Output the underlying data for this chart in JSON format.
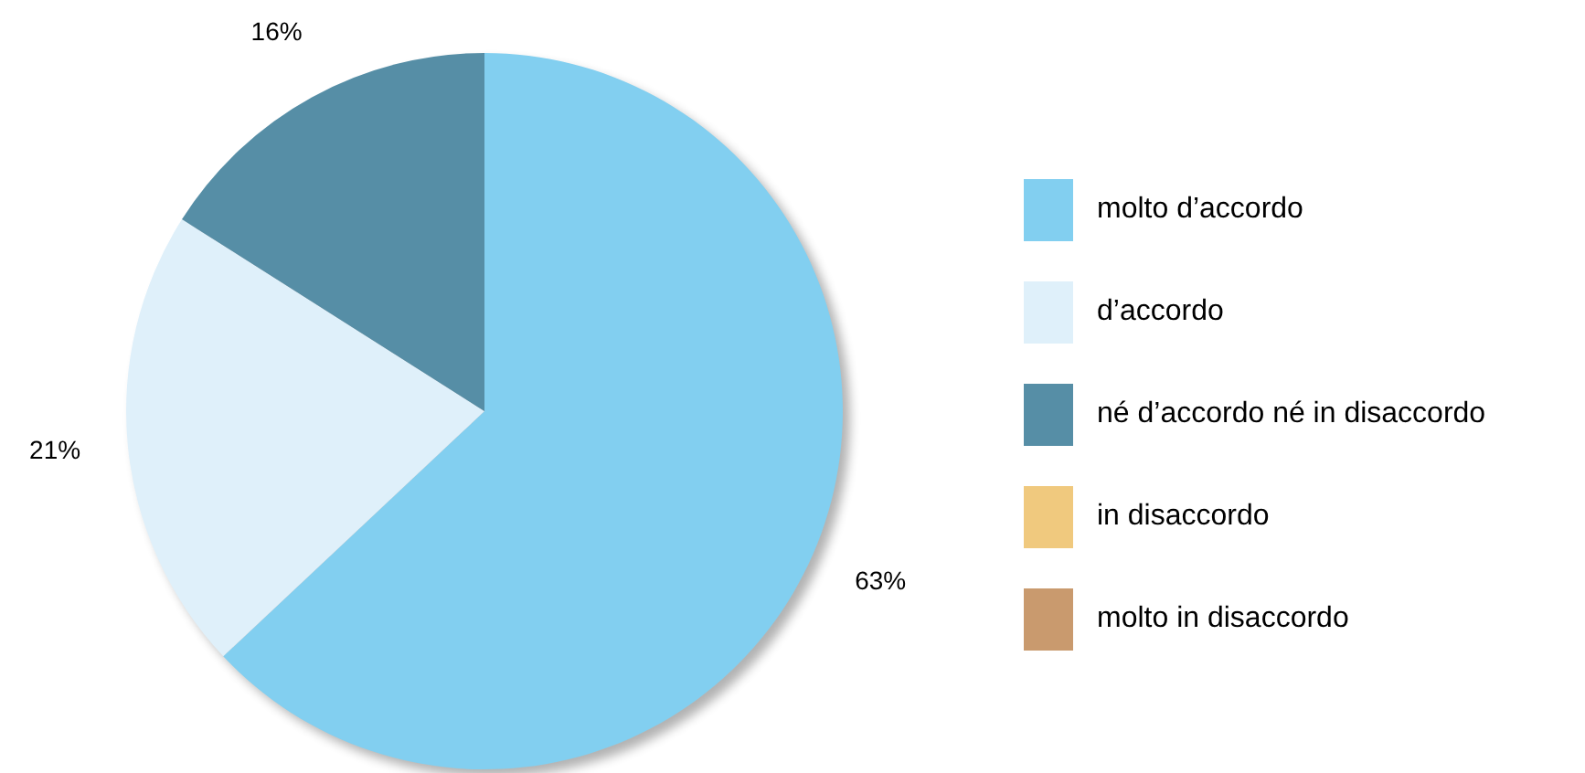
{
  "chart_data": {
    "type": "pie",
    "categories": [
      "molto d’accordo",
      "d’accordo",
      "né d’accordo né in disaccordo",
      "in disaccordo",
      "molto in disaccordo"
    ],
    "values": [
      63,
      21,
      16,
      0,
      0
    ],
    "colors": [
      "#82cff0",
      "#dff0fa",
      "#568ea6",
      "#f0c97e",
      "#c99a6e"
    ],
    "value_labels": [
      "63%",
      "21%",
      "16%",
      null,
      null
    ],
    "legend": "right"
  }
}
